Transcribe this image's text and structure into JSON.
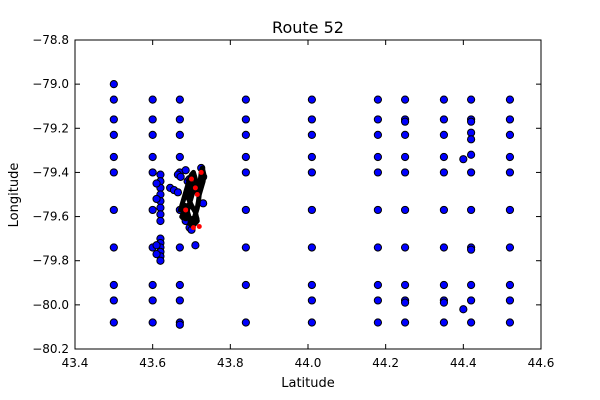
{
  "chart_data": {
    "type": "scatter",
    "title": "Route 52",
    "xlabel": "Latitude",
    "ylabel": "Longitude",
    "xlim": [
      43.4,
      44.6
    ],
    "ylim": [
      -80.2,
      -78.8
    ],
    "xticks": [
      "43.4",
      "43.6",
      "43.8",
      "44.0",
      "44.2",
      "44.4",
      "44.6"
    ],
    "yticks": [
      "−78.8",
      "−79.0",
      "−79.2",
      "−79.4",
      "−79.6",
      "−79.8",
      "−80.0",
      "−80.2"
    ],
    "grid": false,
    "legend": "none",
    "colors": {
      "stops": "#0000ff",
      "path": "#000000",
      "highlight": "#ff0000"
    },
    "series": [
      {
        "name": "",
        "marker": "circle-blue",
        "points": [
          [
            43.5,
            -79.0
          ],
          [
            43.5,
            -79.07
          ],
          [
            43.5,
            -79.16
          ],
          [
            43.5,
            -79.23
          ],
          [
            43.5,
            -79.33
          ],
          [
            43.5,
            -79.4
          ],
          [
            43.5,
            -79.57
          ],
          [
            43.5,
            -79.74
          ],
          [
            43.5,
            -79.91
          ],
          [
            43.5,
            -79.98
          ],
          [
            43.5,
            -80.08
          ],
          [
            43.6,
            -79.07
          ],
          [
            43.6,
            -79.16
          ],
          [
            43.6,
            -79.23
          ],
          [
            43.6,
            -79.33
          ],
          [
            43.6,
            -79.4
          ],
          [
            43.6,
            -79.57
          ],
          [
            43.6,
            -79.74
          ],
          [
            43.6,
            -79.91
          ],
          [
            43.6,
            -79.98
          ],
          [
            43.6,
            -80.08
          ],
          [
            43.67,
            -79.07
          ],
          [
            43.67,
            -79.16
          ],
          [
            43.67,
            -79.23
          ],
          [
            43.67,
            -79.33
          ],
          [
            43.67,
            -79.4
          ],
          [
            43.67,
            -79.57
          ],
          [
            43.67,
            -79.74
          ],
          [
            43.67,
            -79.91
          ],
          [
            43.67,
            -79.98
          ],
          [
            43.67,
            -80.08
          ],
          [
            43.67,
            -80.09
          ],
          [
            43.84,
            -79.07
          ],
          [
            43.84,
            -79.16
          ],
          [
            43.84,
            -79.23
          ],
          [
            43.84,
            -79.33
          ],
          [
            43.84,
            -79.4
          ],
          [
            43.84,
            -79.57
          ],
          [
            43.84,
            -79.74
          ],
          [
            43.84,
            -79.91
          ],
          [
            43.84,
            -80.08
          ],
          [
            44.01,
            -79.07
          ],
          [
            44.01,
            -79.16
          ],
          [
            44.01,
            -79.23
          ],
          [
            44.01,
            -79.33
          ],
          [
            44.01,
            -79.4
          ],
          [
            44.01,
            -79.57
          ],
          [
            44.01,
            -79.74
          ],
          [
            44.01,
            -79.91
          ],
          [
            44.01,
            -79.98
          ],
          [
            44.01,
            -80.08
          ],
          [
            44.18,
            -79.07
          ],
          [
            44.18,
            -79.16
          ],
          [
            44.18,
            -79.23
          ],
          [
            44.18,
            -79.33
          ],
          [
            44.18,
            -79.4
          ],
          [
            44.18,
            -79.57
          ],
          [
            44.18,
            -79.74
          ],
          [
            44.18,
            -79.91
          ],
          [
            44.18,
            -79.98
          ],
          [
            44.18,
            -80.08
          ],
          [
            44.25,
            -79.07
          ],
          [
            44.25,
            -79.16
          ],
          [
            44.25,
            -79.17
          ],
          [
            44.25,
            -79.23
          ],
          [
            44.25,
            -79.33
          ],
          [
            44.25,
            -79.4
          ],
          [
            44.25,
            -79.57
          ],
          [
            44.25,
            -79.74
          ],
          [
            44.25,
            -79.91
          ],
          [
            44.25,
            -79.98
          ],
          [
            44.25,
            -79.99
          ],
          [
            44.25,
            -80.08
          ],
          [
            44.35,
            -79.07
          ],
          [
            44.35,
            -79.16
          ],
          [
            44.35,
            -79.23
          ],
          [
            44.35,
            -79.33
          ],
          [
            44.35,
            -79.4
          ],
          [
            44.35,
            -79.57
          ],
          [
            44.35,
            -79.74
          ],
          [
            44.35,
            -79.91
          ],
          [
            44.35,
            -79.98
          ],
          [
            44.35,
            -79.99
          ],
          [
            44.35,
            -80.08
          ],
          [
            44.42,
            -79.07
          ],
          [
            44.42,
            -79.16
          ],
          [
            44.42,
            -79.17
          ],
          [
            44.42,
            -79.22
          ],
          [
            44.42,
            -79.25
          ],
          [
            44.42,
            -79.32
          ],
          [
            44.42,
            -79.4
          ],
          [
            44.42,
            -79.57
          ],
          [
            44.42,
            -79.74
          ],
          [
            44.42,
            -79.75
          ],
          [
            44.42,
            -79.91
          ],
          [
            44.42,
            -79.98
          ],
          [
            44.42,
            -80.08
          ],
          [
            44.4,
            -79.34
          ],
          [
            44.4,
            -80.02
          ],
          [
            44.52,
            -79.07
          ],
          [
            44.52,
            -79.16
          ],
          [
            44.52,
            -79.23
          ],
          [
            44.52,
            -79.33
          ],
          [
            44.52,
            -79.4
          ],
          [
            44.52,
            -79.57
          ],
          [
            44.52,
            -79.74
          ],
          [
            44.52,
            -79.91
          ],
          [
            44.52,
            -79.98
          ],
          [
            44.52,
            -80.08
          ],
          [
            43.62,
            -79.41
          ],
          [
            43.62,
            -79.44
          ],
          [
            43.62,
            -79.47
          ],
          [
            43.62,
            -79.5
          ],
          [
            43.62,
            -79.53
          ],
          [
            43.62,
            -79.56
          ],
          [
            43.62,
            -79.59
          ],
          [
            43.62,
            -79.62
          ],
          [
            43.62,
            -79.7
          ],
          [
            43.62,
            -79.72
          ],
          [
            43.62,
            -79.74
          ],
          [
            43.62,
            -79.76
          ],
          [
            43.62,
            -79.78
          ],
          [
            43.62,
            -79.8
          ],
          [
            43.61,
            -79.45
          ],
          [
            43.61,
            -79.52
          ],
          [
            43.61,
            -79.73
          ],
          [
            43.61,
            -79.77
          ],
          [
            43.645,
            -79.47
          ],
          [
            43.655,
            -79.48
          ],
          [
            43.665,
            -79.49
          ],
          [
            43.665,
            -79.41
          ],
          [
            43.672,
            -79.42
          ],
          [
            43.685,
            -79.39
          ],
          [
            43.69,
            -79.44
          ],
          [
            43.695,
            -79.43
          ],
          [
            43.705,
            -79.46
          ],
          [
            43.695,
            -79.65
          ],
          [
            43.7,
            -79.66
          ],
          [
            43.71,
            -79.73
          ],
          [
            43.73,
            -79.54
          ],
          [
            43.725,
            -79.38
          ],
          [
            43.73,
            -79.42
          ],
          [
            43.68,
            -79.6
          ],
          [
            43.685,
            -79.62
          ],
          [
            43.7,
            -79.63
          ],
          [
            43.71,
            -79.61
          ]
        ]
      },
      {
        "name": "",
        "marker": "line-black",
        "points": [
          [
            43.67,
            -79.58
          ],
          [
            43.675,
            -79.55
          ],
          [
            43.68,
            -79.52
          ],
          [
            43.685,
            -79.49
          ],
          [
            43.69,
            -79.46
          ],
          [
            43.695,
            -79.43
          ],
          [
            43.7,
            -79.41
          ],
          [
            43.705,
            -79.4
          ],
          [
            43.71,
            -79.43
          ],
          [
            43.712,
            -79.46
          ],
          [
            43.715,
            -79.49
          ],
          [
            43.72,
            -79.46
          ],
          [
            43.723,
            -79.43
          ],
          [
            43.725,
            -79.4
          ],
          [
            43.728,
            -79.38
          ],
          [
            43.732,
            -79.41
          ],
          [
            43.73,
            -79.44
          ],
          [
            43.725,
            -79.47
          ],
          [
            43.72,
            -79.5
          ],
          [
            43.718,
            -79.53
          ],
          [
            43.715,
            -79.56
          ],
          [
            43.71,
            -79.59
          ],
          [
            43.705,
            -79.62
          ],
          [
            43.7,
            -79.64
          ],
          [
            43.695,
            -79.61
          ],
          [
            43.69,
            -79.58
          ],
          [
            43.685,
            -79.55
          ],
          [
            43.68,
            -79.58
          ],
          [
            43.675,
            -79.6
          ],
          [
            43.685,
            -79.61
          ],
          [
            43.69,
            -79.57
          ],
          [
            43.695,
            -79.54
          ],
          [
            43.7,
            -79.51
          ],
          [
            43.705,
            -79.48
          ],
          [
            43.7,
            -79.45
          ],
          [
            43.695,
            -79.48
          ],
          [
            43.69,
            -79.51
          ],
          [
            43.7,
            -79.55
          ],
          [
            43.71,
            -79.58
          ],
          [
            43.715,
            -79.62
          ],
          [
            43.705,
            -79.64
          ],
          [
            43.697,
            -79.6
          ]
        ]
      },
      {
        "name": "",
        "marker": "circle-red",
        "points": [
          [
            43.685,
            -79.57
          ],
          [
            43.7,
            -79.43
          ],
          [
            43.71,
            -79.47
          ],
          [
            43.715,
            -79.5
          ],
          [
            43.725,
            -79.4
          ],
          [
            43.705,
            -79.65
          ],
          [
            43.72,
            -79.645
          ]
        ]
      }
    ]
  }
}
